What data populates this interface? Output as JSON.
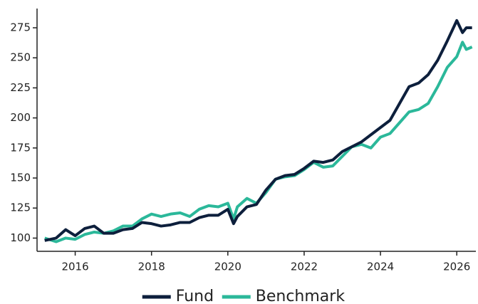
{
  "chart_data": {
    "type": "line",
    "x": [
      2015.2,
      2015.5,
      2015.75,
      2016.0,
      2016.25,
      2016.5,
      2016.75,
      2017.0,
      2017.25,
      2017.5,
      2017.75,
      2018.0,
      2018.25,
      2018.5,
      2018.75,
      2019.0,
      2019.25,
      2019.5,
      2019.75,
      2020.0,
      2020.15,
      2020.25,
      2020.5,
      2020.75,
      2021.0,
      2021.25,
      2021.5,
      2021.75,
      2022.0,
      2022.25,
      2022.5,
      2022.75,
      2023.0,
      2023.25,
      2023.5,
      2023.75,
      2024.0,
      2024.25,
      2024.5,
      2024.75,
      2025.0,
      2025.25,
      2025.5,
      2025.75,
      2026.0,
      2026.15,
      2026.25,
      2026.4
    ],
    "series": [
      {
        "name": "Fund",
        "color": "#0d1f3c",
        "values": [
          98,
          100,
          107,
          102,
          108,
          110,
          104,
          104,
          107,
          108,
          113,
          112,
          110,
          111,
          113,
          113,
          117,
          119,
          119,
          124,
          112,
          118,
          126,
          128,
          140,
          149,
          152,
          153,
          158,
          164,
          163,
          165,
          172,
          176,
          180,
          186,
          192,
          198,
          212,
          226,
          229,
          236,
          248,
          264,
          281,
          271,
          275,
          275
        ]
      },
      {
        "name": "Benchmark",
        "color": "#2bb89a",
        "values": [
          100,
          97,
          100,
          99,
          103,
          105,
          104,
          106,
          110,
          110,
          116,
          120,
          118,
          120,
          121,
          118,
          124,
          127,
          126,
          129,
          116,
          126,
          133,
          129,
          138,
          149,
          151,
          152,
          157,
          163,
          159,
          160,
          168,
          176,
          178,
          175,
          184,
          187,
          196,
          205,
          207,
          212,
          226,
          242,
          251,
          263,
          257,
          259
        ]
      }
    ],
    "xlim": [
      2015,
      2026.5
    ],
    "xticks": [
      2016,
      2018,
      2020,
      2022,
      2024,
      2026
    ],
    "ylim": [
      89,
      291
    ],
    "yticks": [
      100,
      125,
      150,
      175,
      200,
      225,
      250,
      275
    ],
    "legend": "bottom"
  }
}
